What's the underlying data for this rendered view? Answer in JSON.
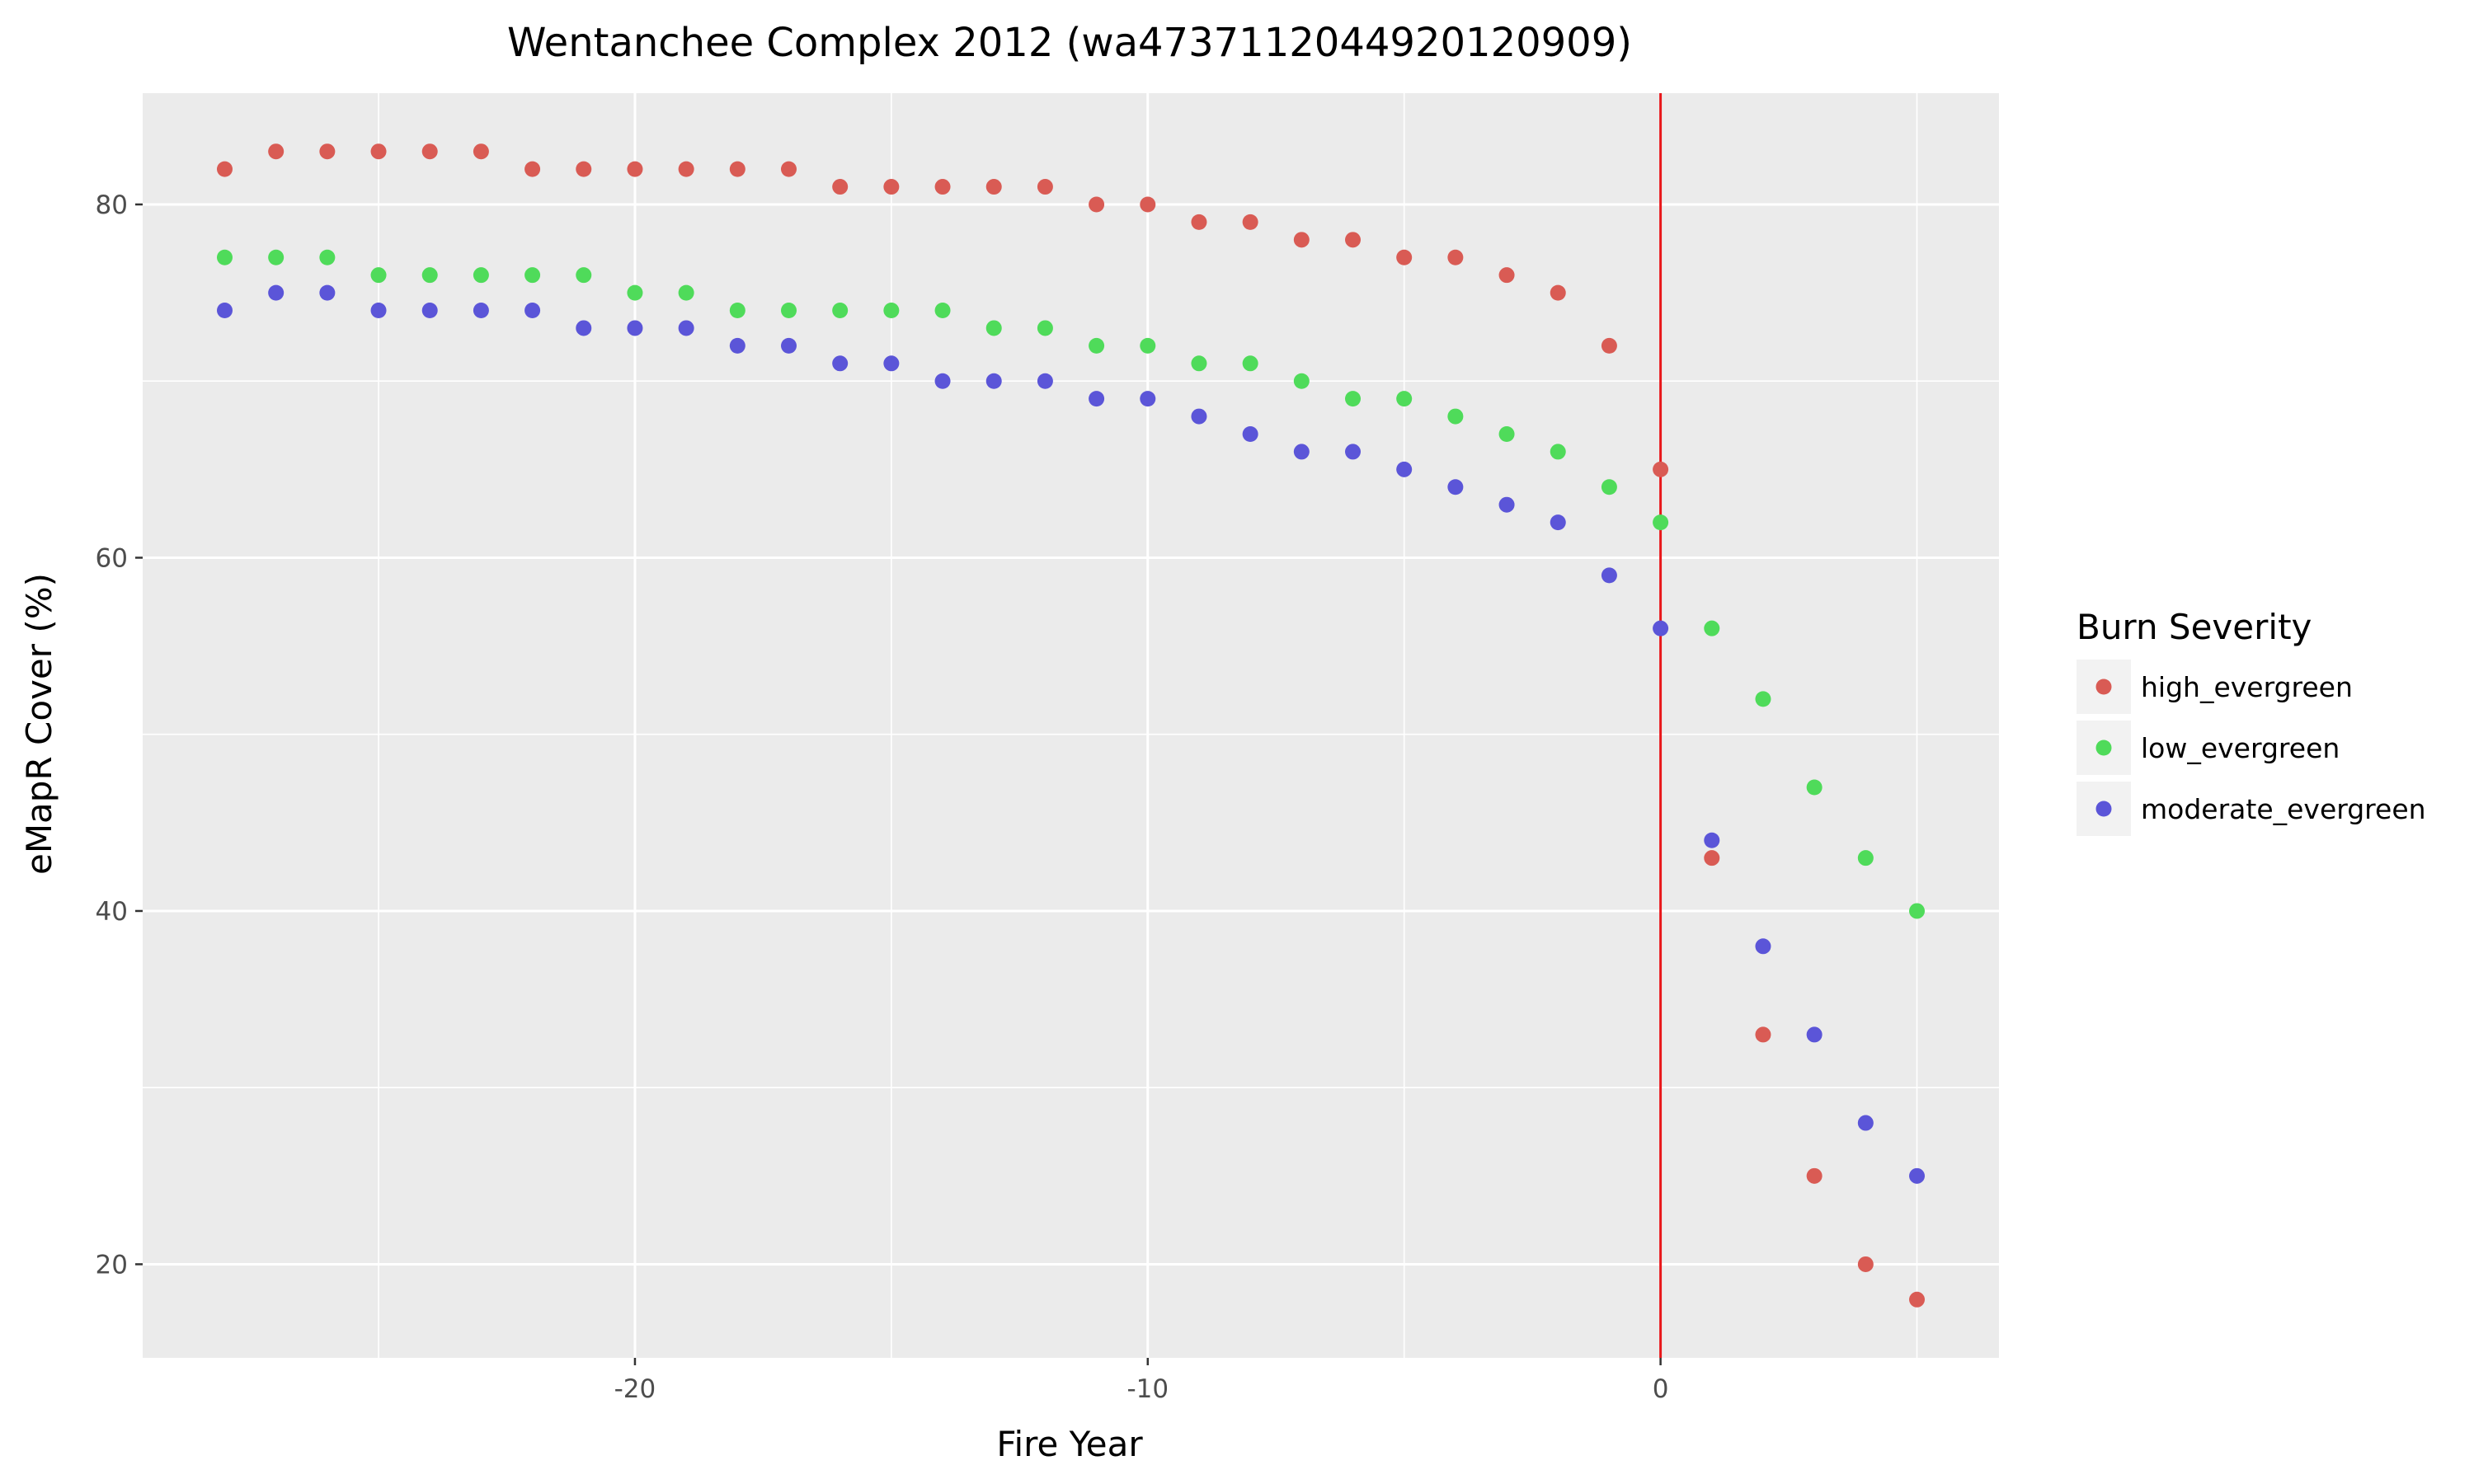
{
  "chart_data": {
    "type": "scatter",
    "title": "Wentanchee Complex 2012 (wa4737112044920120909)",
    "xlabel": "Fire Year",
    "ylabel": "eMapR Cover (%)",
    "xlim": [
      -29.6,
      6.6
    ],
    "ylim": [
      14.7,
      86.3
    ],
    "xticks": [
      -20,
      -10,
      0
    ],
    "yticks": [
      20,
      40,
      60,
      80
    ],
    "xtick_labels": [
      "-20",
      "-10",
      "0"
    ],
    "ytick_labels": [
      "20",
      "40",
      "60",
      "80"
    ],
    "grid": true,
    "legend_position": "right",
    "legend_title": "Burn Severity",
    "reference_line": {
      "x": 0,
      "color": "#e8171a"
    },
    "background": "#ebebeb",
    "series": [
      {
        "name": "high_evergreen",
        "color": "#d95b54",
        "points": [
          [
            -28,
            82
          ],
          [
            -27,
            83
          ],
          [
            -26,
            83
          ],
          [
            -25,
            83
          ],
          [
            -24,
            83
          ],
          [
            -23,
            83
          ],
          [
            -22,
            82
          ],
          [
            -21,
            82
          ],
          [
            -20,
            82
          ],
          [
            -19,
            82
          ],
          [
            -18,
            82
          ],
          [
            -17,
            82
          ],
          [
            -16,
            81
          ],
          [
            -15,
            81
          ],
          [
            -14,
            81
          ],
          [
            -13,
            81
          ],
          [
            -12,
            81
          ],
          [
            -11,
            80
          ],
          [
            -10,
            80
          ],
          [
            -9,
            79
          ],
          [
            -8,
            79
          ],
          [
            -7,
            78
          ],
          [
            -6,
            78
          ],
          [
            -5,
            77
          ],
          [
            -4,
            77
          ],
          [
            -3,
            76
          ],
          [
            -2,
            75
          ],
          [
            -1,
            72
          ],
          [
            0,
            65
          ],
          [
            1,
            43
          ],
          [
            2,
            33
          ],
          [
            3,
            25
          ],
          [
            4,
            20
          ],
          [
            5,
            18
          ]
        ]
      },
      {
        "name": "low_evergreen",
        "color": "#4fdb5a",
        "points": [
          [
            -28,
            77
          ],
          [
            -27,
            77
          ],
          [
            -26,
            77
          ],
          [
            -25,
            76
          ],
          [
            -24,
            76
          ],
          [
            -23,
            76
          ],
          [
            -22,
            76
          ],
          [
            -21,
            76
          ],
          [
            -20,
            75
          ],
          [
            -19,
            75
          ],
          [
            -18,
            74
          ],
          [
            -17,
            74
          ],
          [
            -16,
            74
          ],
          [
            -15,
            74
          ],
          [
            -14,
            74
          ],
          [
            -13,
            73
          ],
          [
            -12,
            73
          ],
          [
            -11,
            72
          ],
          [
            -10,
            72
          ],
          [
            -9,
            71
          ],
          [
            -8,
            71
          ],
          [
            -7,
            70
          ],
          [
            -6,
            69
          ],
          [
            -5,
            69
          ],
          [
            -4,
            68
          ],
          [
            -3,
            67
          ],
          [
            -2,
            66
          ],
          [
            -1,
            64
          ],
          [
            0,
            62
          ],
          [
            1,
            56
          ],
          [
            2,
            52
          ],
          [
            3,
            47
          ],
          [
            4,
            43
          ],
          [
            5,
            40
          ]
        ]
      },
      {
        "name": "moderate_evergreen",
        "color": "#5b55d8",
        "points": [
          [
            -28,
            74
          ],
          [
            -27,
            75
          ],
          [
            -26,
            75
          ],
          [
            -25,
            74
          ],
          [
            -24,
            74
          ],
          [
            -23,
            74
          ],
          [
            -22,
            74
          ],
          [
            -21,
            73
          ],
          [
            -20,
            73
          ],
          [
            -19,
            73
          ],
          [
            -18,
            72
          ],
          [
            -17,
            72
          ],
          [
            -16,
            71
          ],
          [
            -15,
            71
          ],
          [
            -14,
            70
          ],
          [
            -13,
            70
          ],
          [
            -12,
            70
          ],
          [
            -11,
            69
          ],
          [
            -10,
            69
          ],
          [
            -9,
            68
          ],
          [
            -8,
            67
          ],
          [
            -7,
            66
          ],
          [
            -6,
            66
          ],
          [
            -5,
            65
          ],
          [
            -4,
            64
          ],
          [
            -3,
            63
          ],
          [
            -2,
            62
          ],
          [
            -1,
            59
          ],
          [
            0,
            56
          ],
          [
            1,
            44
          ],
          [
            2,
            38
          ],
          [
            3,
            33
          ],
          [
            4,
            28
          ],
          [
            5,
            25
          ]
        ]
      }
    ]
  }
}
